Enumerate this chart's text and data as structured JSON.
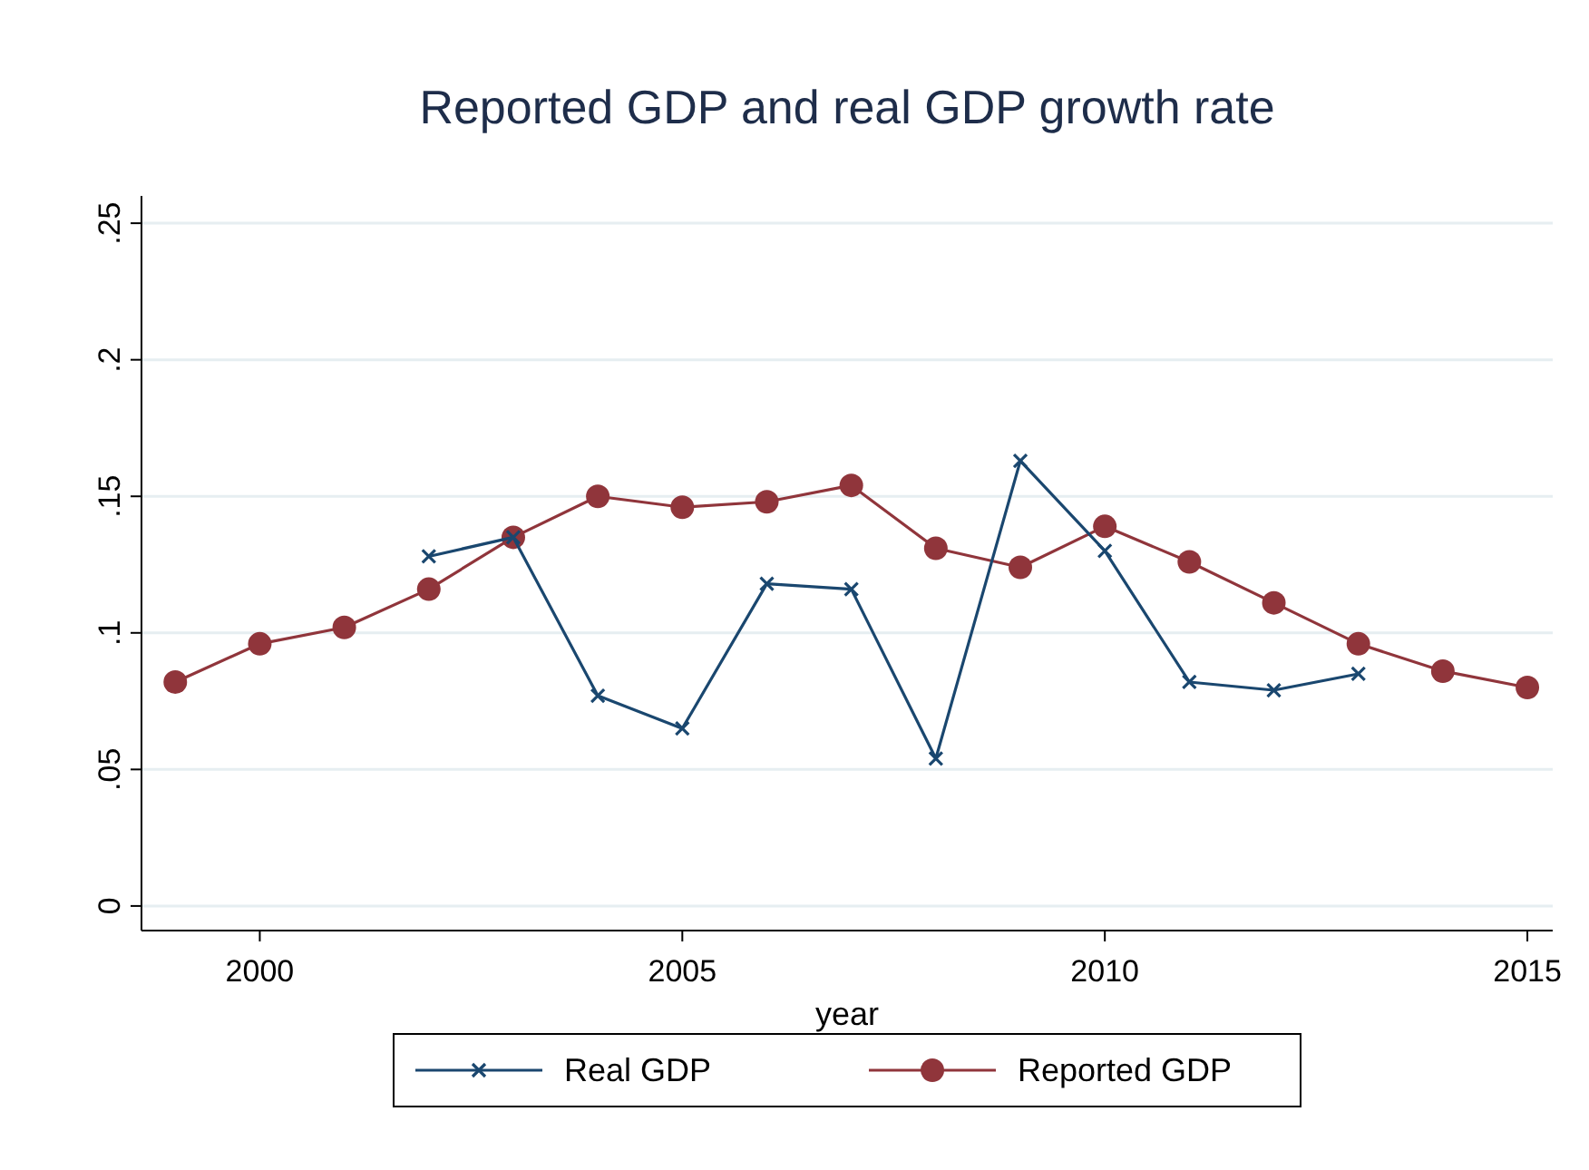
{
  "chart_data": {
    "type": "line",
    "title": "Reported GDP and real GDP growth rate",
    "xlabel": "year",
    "xlim": [
      1998.6,
      2015.3
    ],
    "xticks": [
      2000,
      2005,
      2010,
      2015
    ],
    "ylim": [
      -0.009,
      0.26
    ],
    "yticks": [
      {
        "value": 0,
        "label": "0"
      },
      {
        "value": 0.05,
        "label": ".05"
      },
      {
        "value": 0.1,
        "label": ".1"
      },
      {
        "value": 0.15,
        "label": ".15"
      },
      {
        "value": 0.2,
        "label": ".2"
      },
      {
        "value": 0.25,
        "label": ".25"
      }
    ],
    "grid": "y",
    "legend": "bottom",
    "line_style": "solid",
    "series": [
      {
        "name": "Real GDP",
        "color": "#1a476f",
        "marker": "cross",
        "x": [
          2002,
          2003,
          2004,
          2005,
          2006,
          2007,
          2008,
          2009,
          2010,
          2011,
          2012,
          2013
        ],
        "values": [
          0.128,
          0.135,
          0.077,
          0.065,
          0.118,
          0.116,
          0.054,
          0.163,
          0.13,
          0.082,
          0.079,
          0.085
        ]
      },
      {
        "name": "Reported GDP",
        "color": "#90353b",
        "marker": "circle",
        "x": [
          1999,
          2000,
          2001,
          2002,
          2003,
          2004,
          2005,
          2006,
          2007,
          2008,
          2009,
          2010,
          2011,
          2012,
          2013,
          2014,
          2015
        ],
        "values": [
          0.082,
          0.096,
          0.102,
          0.116,
          0.135,
          0.15,
          0.146,
          0.148,
          0.154,
          0.131,
          0.124,
          0.139,
          0.126,
          0.111,
          0.096,
          0.086,
          0.08
        ]
      }
    ]
  }
}
